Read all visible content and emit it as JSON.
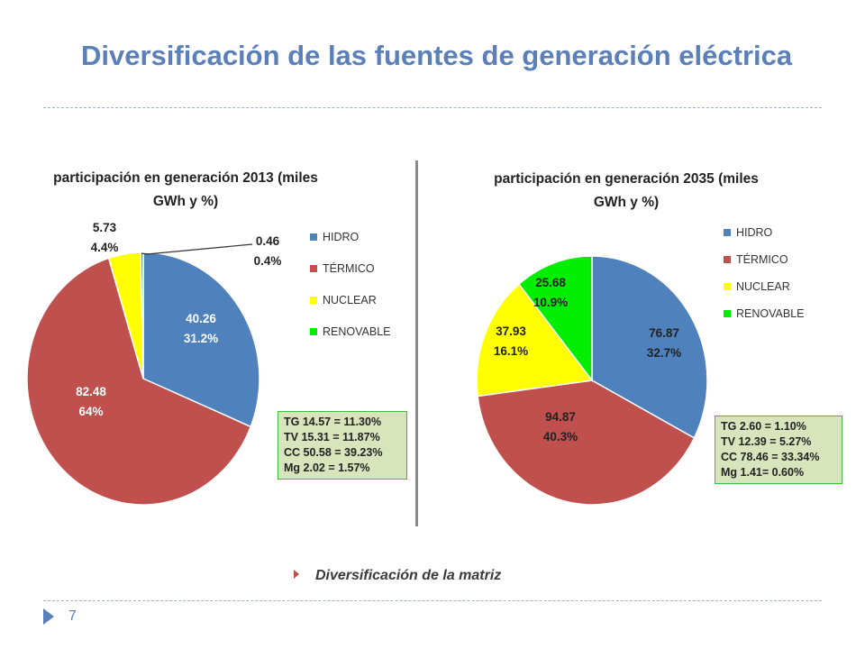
{
  "title": "Diversificación de las fuentes de generación eléctrica",
  "bullet_text": "Diversificación  de la matriz",
  "page_number": "7",
  "colors": {
    "HIDRO": "#4f81bd",
    "TÉRMICO": "#c0504d",
    "NUCLEAR": "#ffff00",
    "RENOVABLE": "#00ee00"
  },
  "chart_data": [
    {
      "type": "pie",
      "title": [
        "participación  en generación 2013 (miles",
        "GWh y %)"
      ],
      "legend": [
        "HIDRO",
        "TÉRMICO",
        "NUCLEAR",
        "RENOVABLE"
      ],
      "slices": [
        {
          "name": "HIDRO",
          "value": 40.26,
          "percent": "31.2%"
        },
        {
          "name": "TÉRMICO",
          "value": 82.48,
          "percent": "64%"
        },
        {
          "name": "NUCLEAR",
          "value": 5.73,
          "percent": "4.4%"
        },
        {
          "name": "RENOVABLE",
          "value": 0.46,
          "percent": "0.4%"
        }
      ],
      "breakdown": [
        "TG 14.57 = 11.30%",
        "TV 15.31 = 11.87%",
        "CC  50.58 = 39.23%",
        "Mg  2.02 = 1.57%"
      ]
    },
    {
      "type": "pie",
      "title": [
        "participación  en generación 2035 (miles",
        "GWh y %)"
      ],
      "legend": [
        "HIDRO",
        "TÉRMICO",
        "NUCLEAR",
        "RENOVABLE"
      ],
      "slices": [
        {
          "name": "HIDRO",
          "value": 76.87,
          "percent": "32.7%"
        },
        {
          "name": "TÉRMICO",
          "value": 94.87,
          "percent": "40.3%"
        },
        {
          "name": "NUCLEAR",
          "value": 37.93,
          "percent": "16.1%"
        },
        {
          "name": "RENOVABLE",
          "value": 25.68,
          "percent": "10.9%"
        }
      ],
      "breakdown": [
        "TG 2.60 = 1.10%",
        "TV 12.39 = 5.27%",
        "CC  78.46 = 33.34%",
        "Mg  1.41= 0.60%"
      ]
    }
  ]
}
